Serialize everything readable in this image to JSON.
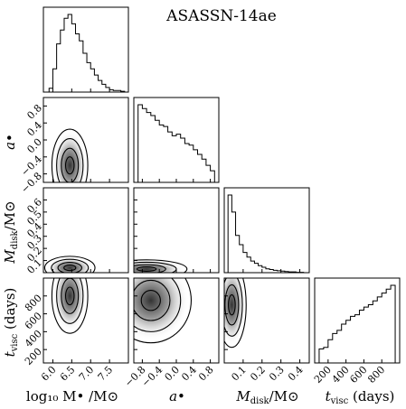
{
  "chart_data": {
    "type": "corner",
    "title": "ASASSN-14ae",
    "parameters": [
      {
        "label": "log₁₀M•/M⊙",
        "range": [
          5.75,
          8.0
        ],
        "ticks": [
          "6.0",
          "6.5",
          "7.0",
          "7.5"
        ]
      },
      {
        "label": "a•",
        "range": [
          -1.0,
          1.0
        ],
        "ticks": [
          "−0.8",
          "−0.4",
          "0.0",
          "0.4",
          "0.8"
        ]
      },
      {
        "label": "M_disk/M⊙",
        "range": [
          0.0,
          0.45
        ],
        "ticks": [
          "0.1",
          "0.2",
          "0.3",
          "0.4"
        ]
      },
      {
        "label": "t_visc (days)",
        "range": [
          50,
          1000
        ],
        "ticks": [
          "200",
          "400",
          "600",
          "800"
        ]
      }
    ],
    "axis_label_texts": {
      "x": [
        "log₁₀ M• /M⊙",
        "a•",
        "M",
        "t"
      ],
      "x_sub": [
        "",
        "",
        "disk",
        "visc"
      ],
      "x_tail": [
        "",
        "",
        "/M⊙",
        " (days)"
      ]
    },
    "row_tick_labels": {
      "a": [
        "0.8",
        "0.4",
        "0.0",
        "−0.4",
        "−0.8"
      ],
      "mdisk": [
        "0.6",
        "0.5",
        "0.4",
        "0.3",
        "0.2",
        "0.1"
      ],
      "tvisc": [
        "800",
        "600",
        "400",
        "200"
      ]
    },
    "histograms": {
      "logM": {
        "bin_edges": [
          5.9,
          6.0,
          6.1,
          6.2,
          6.3,
          6.4,
          6.5,
          6.6,
          6.7,
          6.8,
          6.9,
          7.0,
          7.1,
          7.2,
          7.3,
          7.4,
          7.5,
          7.6,
          7.7,
          7.8,
          7.9
        ],
        "counts": [
          0.05,
          0.3,
          0.62,
          0.8,
          0.95,
          1.0,
          0.88,
          0.75,
          0.66,
          0.5,
          0.38,
          0.3,
          0.22,
          0.15,
          0.1,
          0.06,
          0.03,
          0.02,
          0.02,
          0.01
        ]
      },
      "a": {
        "bin_edges": [
          -0.9,
          -0.8,
          -0.7,
          -0.6,
          -0.5,
          -0.4,
          -0.3,
          -0.2,
          -0.1,
          0.0,
          0.1,
          0.2,
          0.3,
          0.4,
          0.5,
          0.6,
          0.7,
          0.8,
          0.9
        ],
        "counts": [
          1.0,
          0.95,
          0.9,
          0.86,
          0.8,
          0.74,
          0.72,
          0.65,
          0.6,
          0.62,
          0.57,
          0.5,
          0.48,
          0.42,
          0.36,
          0.3,
          0.22,
          0.15
        ]
      },
      "mdisk": {
        "bin_edges": [
          0.02,
          0.04,
          0.06,
          0.08,
          0.1,
          0.12,
          0.14,
          0.16,
          0.18,
          0.2,
          0.22,
          0.24,
          0.26,
          0.28,
          0.3,
          0.32,
          0.34,
          0.36,
          0.38,
          0.4,
          0.42
        ],
        "counts": [
          1.0,
          0.78,
          0.48,
          0.36,
          0.26,
          0.2,
          0.15,
          0.12,
          0.09,
          0.07,
          0.05,
          0.04,
          0.03,
          0.025,
          0.02,
          0.015,
          0.01,
          0.01,
          0.005,
          0.005
        ]
      },
      "tvisc": {
        "bin_edges": [
          100,
          150,
          200,
          250,
          300,
          350,
          400,
          450,
          500,
          550,
          600,
          650,
          700,
          750,
          800,
          850,
          900,
          950
        ],
        "counts": [
          0.18,
          0.2,
          0.3,
          0.38,
          0.42,
          0.5,
          0.55,
          0.6,
          0.62,
          0.68,
          0.72,
          0.75,
          0.8,
          0.85,
          0.9,
          0.95,
          1.0
        ]
      }
    },
    "density_peaks": [
      {
        "panel": "a_vs_logM",
        "x": 6.45,
        "y": -0.6,
        "sx": 0.25,
        "sy": 0.45
      },
      {
        "panel": "mdisk_vs_logM",
        "x": 6.45,
        "y": 0.04,
        "sx": 0.35,
        "sy": 0.05
      },
      {
        "panel": "mdisk_vs_a",
        "x": -0.7,
        "y": 0.03,
        "sx": 0.5,
        "sy": 0.04
      },
      {
        "panel": "tvisc_vs_logM",
        "x": 6.45,
        "y": 800,
        "sx": 0.25,
        "sy": 220
      },
      {
        "panel": "tvisc_vs_a",
        "x": -0.6,
        "y": 750,
        "sx": 0.5,
        "sy": 250
      },
      {
        "panel": "tvisc_vs_mdisk",
        "x": 0.04,
        "y": 700,
        "sx": 0.04,
        "sy": 250
      }
    ]
  }
}
